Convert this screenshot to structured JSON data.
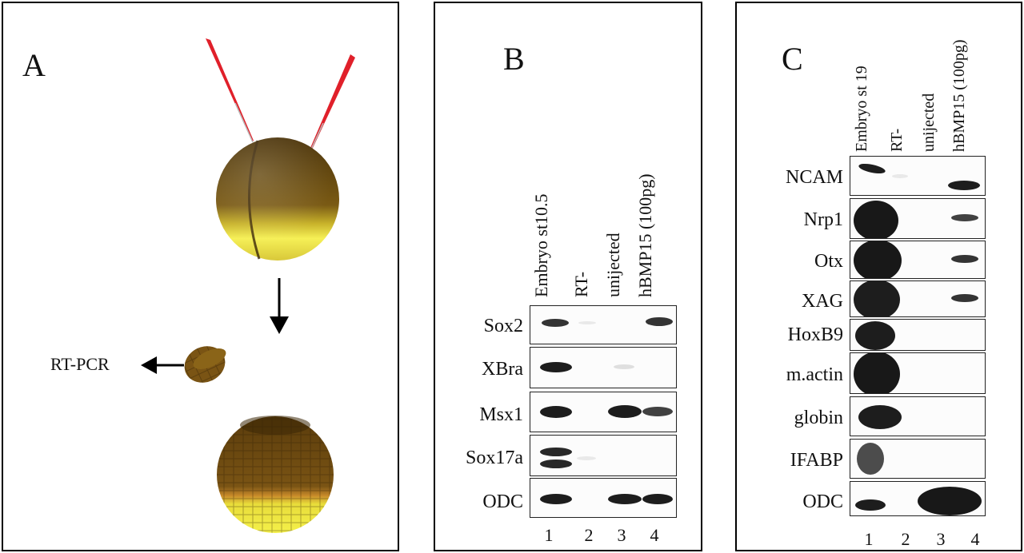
{
  "panel_a": {
    "label": "A",
    "rtpcr_label": "RT-PCR",
    "colors": {
      "animal_pole": "#6a4a12",
      "vegetal_pole": "#f4f04a",
      "needle": "#e0202a"
    }
  },
  "panel_b": {
    "label": "B",
    "lanes": [
      "Embryo st10.5",
      "RT-",
      "unijected",
      "hBMP15 (100pg)"
    ],
    "lane_numbers": [
      "1",
      "2",
      "3",
      "4"
    ],
    "genes": [
      "Sox2",
      "XBra",
      "Msx1",
      "Sox17a",
      "ODC"
    ]
  },
  "panel_c": {
    "label": "C",
    "lanes": [
      "Embryo st 19",
      "RT-",
      "unijected",
      "hBMP15 (100pg)"
    ],
    "lane_numbers": [
      "1",
      "2",
      "3",
      "4"
    ],
    "genes": [
      "NCAM",
      "Nrp1",
      "Otx",
      "XAG",
      "HoxB9",
      "m.actin",
      "globin",
      "IFABP",
      "ODC"
    ]
  }
}
